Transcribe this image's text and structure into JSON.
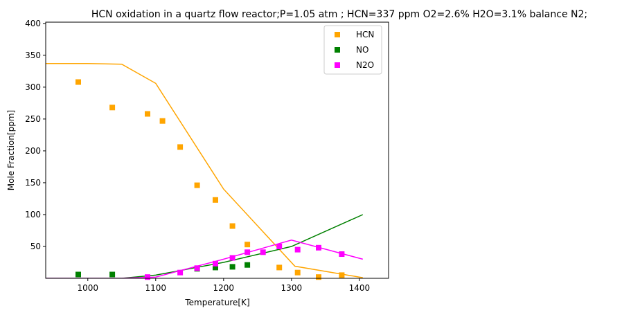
{
  "chart_data": {
    "type": "line",
    "title": "HCN oxidation in a quartz flow reactor;P=1.05 atm ; HCN=337 ppm O2=2.6% H2O=3.1% balance N2;",
    "xlabel": "Temperature[K]",
    "ylabel": "Mole Fraction[ppm]",
    "xlim": [
      938,
      1443
    ],
    "ylim": [
      0,
      402
    ],
    "xticks": [
      1000,
      1100,
      1200,
      1300,
      1400
    ],
    "yticks": [
      50,
      100,
      150,
      200,
      250,
      300,
      350,
      400
    ],
    "grid": false,
    "legend_position": "top-right",
    "legend": [
      "HCN",
      "NO",
      "N2O"
    ],
    "series": [
      {
        "name": "HCN",
        "color": "#ffa500",
        "marker": "square",
        "points": [
          {
            "x": 986,
            "y": 308
          },
          {
            "x": 1036,
            "y": 268
          },
          {
            "x": 1088,
            "y": 258
          },
          {
            "x": 1110,
            "y": 247
          },
          {
            "x": 1136,
            "y": 206
          },
          {
            "x": 1161,
            "y": 146
          },
          {
            "x": 1188,
            "y": 123
          },
          {
            "x": 1213,
            "y": 82
          },
          {
            "x": 1235,
            "y": 53
          },
          {
            "x": 1282,
            "y": 17
          },
          {
            "x": 1309,
            "y": 9
          },
          {
            "x": 1340,
            "y": 2
          },
          {
            "x": 1374,
            "y": 5
          }
        ],
        "line": [
          {
            "x": 938,
            "y": 337
          },
          {
            "x": 1000,
            "y": 337
          },
          {
            "x": 1050,
            "y": 336
          },
          {
            "x": 1100,
            "y": 306
          },
          {
            "x": 1200,
            "y": 140
          },
          {
            "x": 1305,
            "y": 19
          },
          {
            "x": 1405,
            "y": 1
          }
        ]
      },
      {
        "name": "NO",
        "color": "#008000",
        "marker": "square",
        "points": [
          {
            "x": 986,
            "y": 6
          },
          {
            "x": 1036,
            "y": 6
          },
          {
            "x": 1161,
            "y": 15
          },
          {
            "x": 1188,
            "y": 17
          },
          {
            "x": 1213,
            "y": 18
          },
          {
            "x": 1235,
            "y": 21
          }
        ],
        "line": [
          {
            "x": 938,
            "y": 0
          },
          {
            "x": 1050,
            "y": 0
          },
          {
            "x": 1100,
            "y": 5
          },
          {
            "x": 1200,
            "y": 25
          },
          {
            "x": 1300,
            "y": 50
          },
          {
            "x": 1405,
            "y": 100
          }
        ]
      },
      {
        "name": "N2O",
        "color": "#ff00ff",
        "marker": "square",
        "points": [
          {
            "x": 1088,
            "y": 2
          },
          {
            "x": 1136,
            "y": 9
          },
          {
            "x": 1161,
            "y": 16
          },
          {
            "x": 1188,
            "y": 23
          },
          {
            "x": 1213,
            "y": 32
          },
          {
            "x": 1235,
            "y": 41
          },
          {
            "x": 1258,
            "y": 41
          },
          {
            "x": 1282,
            "y": 50
          },
          {
            "x": 1309,
            "y": 45
          },
          {
            "x": 1340,
            "y": 48
          },
          {
            "x": 1374,
            "y": 38
          }
        ],
        "line": [
          {
            "x": 938,
            "y": 0
          },
          {
            "x": 1050,
            "y": 0
          },
          {
            "x": 1100,
            "y": 2
          },
          {
            "x": 1200,
            "y": 30
          },
          {
            "x": 1300,
            "y": 60
          },
          {
            "x": 1405,
            "y": 30
          }
        ]
      }
    ]
  }
}
